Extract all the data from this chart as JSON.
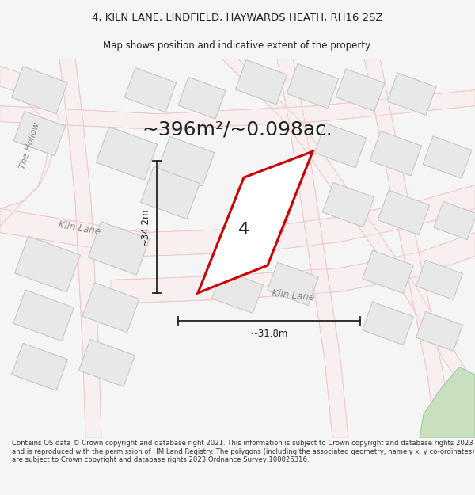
{
  "title_line1": "4, KILN LANE, LINDFIELD, HAYWARDS HEATH, RH16 2SZ",
  "title_line2": "Map shows position and indicative extent of the property.",
  "area_text": "~396m²/~0.098ac.",
  "dim_vertical": "~34.2m",
  "dim_horizontal": "~31.8m",
  "label_number": "4",
  "road_label1": "The Hollow",
  "road_label2": "Kiln Lane",
  "road_label3": "Kiln Lane",
  "footer_text": "Contains OS data © Crown copyright and database right 2021. This information is subject to Crown copyright and database rights 2023 and is reproduced with the permission of HM Land Registry. The polygons (including the associated geometry, namely x, y co-ordinates) are subject to Crown copyright and database rights 2023 Ordnance Survey 100026316.",
  "bg_color": "#f5f5f5",
  "map_bg": "#ffffff",
  "road_line_color": "#f0c8c8",
  "road_area_color": "#f0e8e8",
  "building_fill": "#e8e8e8",
  "building_stroke": "#c8c8c8",
  "plot_stroke": "#cc0000",
  "plot_fill": "#ffffff",
  "green_fill": "#c8e0c0",
  "green_stroke": "#a0c8a0",
  "dim_color": "#222222",
  "text_color": "#222222",
  "road_label_color": "#888888"
}
